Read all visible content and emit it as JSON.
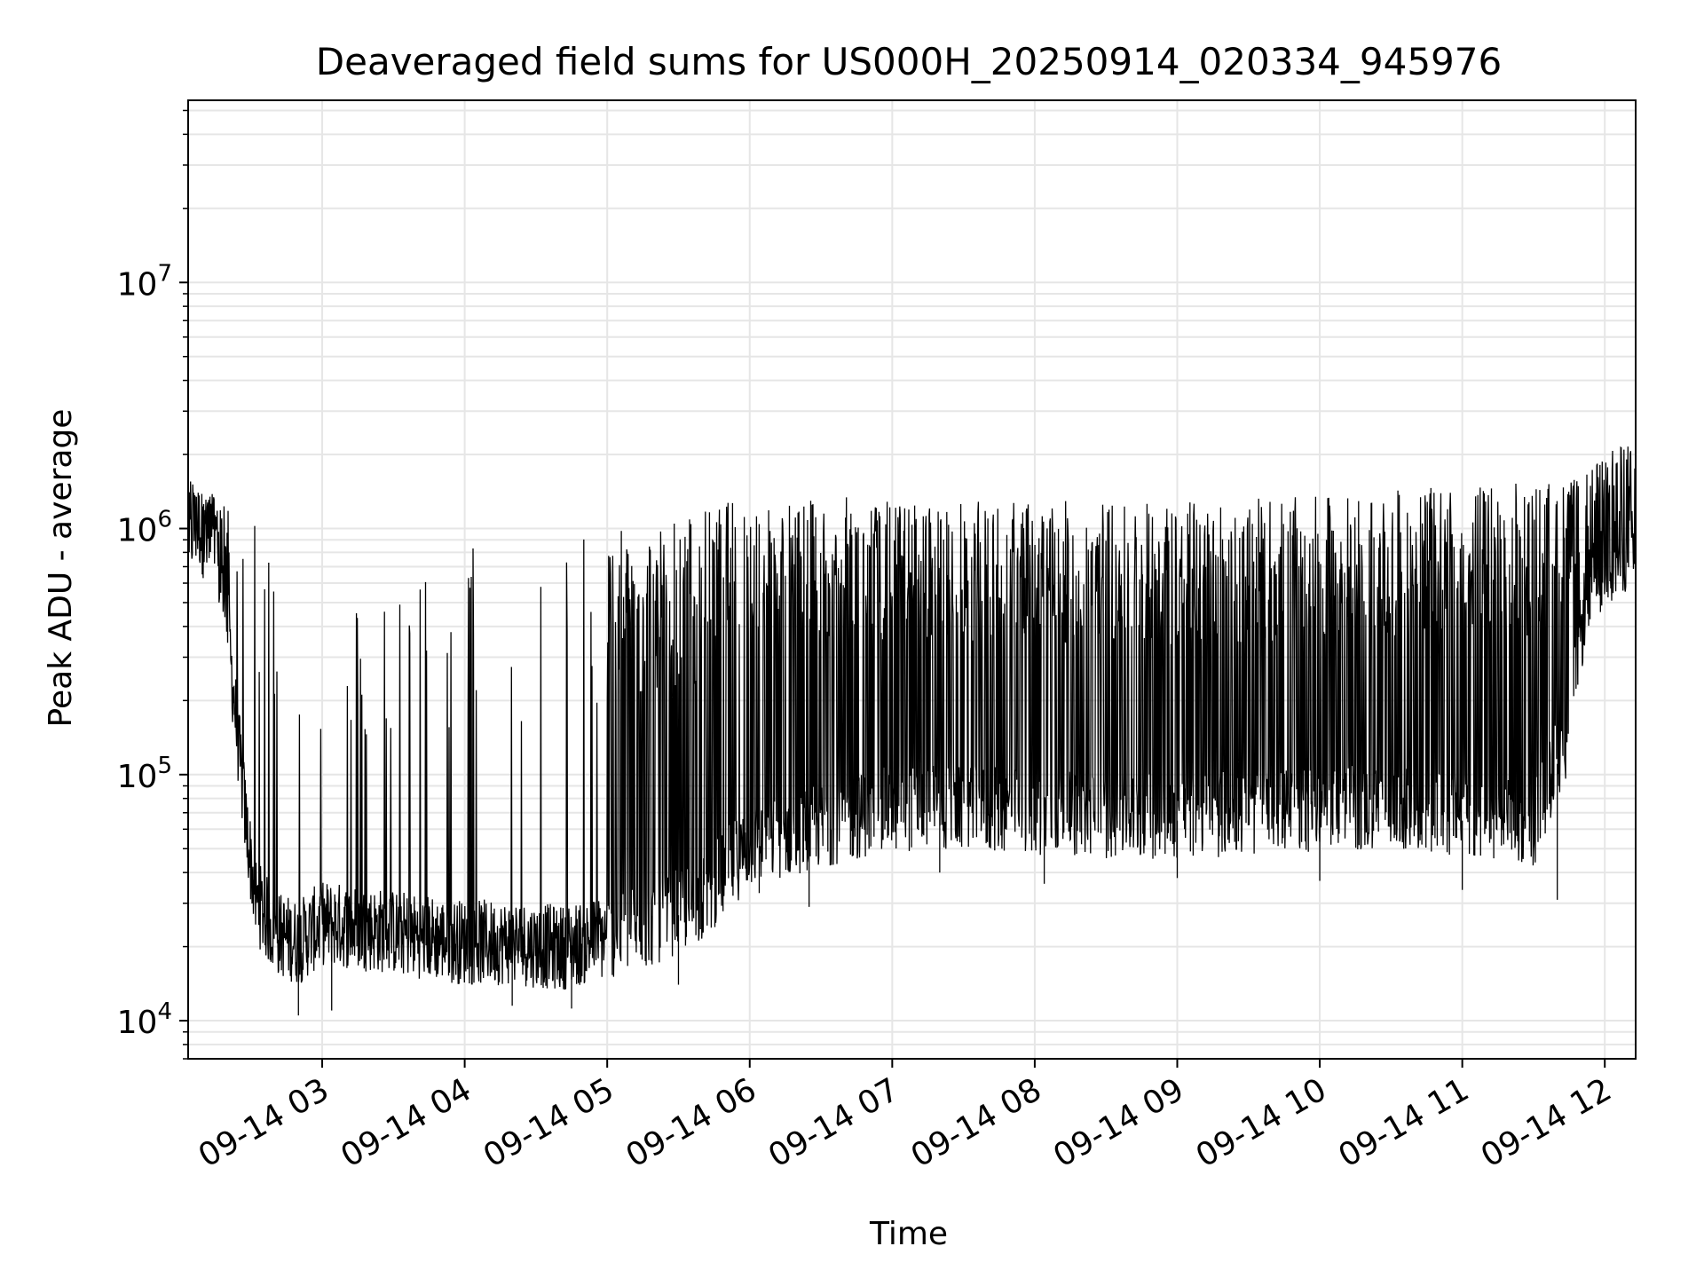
{
  "chart_data": {
    "type": "line",
    "title": "Deaveraged field sums for US000H_20250914_020334_945976",
    "xlabel": "Time",
    "ylabel": "Peak ADU - average",
    "x_range": [
      "2025-09-14T02:03:34",
      "2025-09-14T12:13:00"
    ],
    "ylim": [
      7000,
      55000000
    ],
    "y_scale": "log",
    "grid": true,
    "line_color": "#000000",
    "x_ticks": [
      {
        "value": "2025-09-14T03:00",
        "label": "09-14 03"
      },
      {
        "value": "2025-09-14T04:00",
        "label": "09-14 04"
      },
      {
        "value": "2025-09-14T05:00",
        "label": "09-14 05"
      },
      {
        "value": "2025-09-14T06:00",
        "label": "09-14 06"
      },
      {
        "value": "2025-09-14T07:00",
        "label": "09-14 07"
      },
      {
        "value": "2025-09-14T08:00",
        "label": "09-14 08"
      },
      {
        "value": "2025-09-14T09:00",
        "label": "09-14 09"
      },
      {
        "value": "2025-09-14T10:00",
        "label": "09-14 10"
      },
      {
        "value": "2025-09-14T11:00",
        "label": "09-14 11"
      },
      {
        "value": "2025-09-14T12:00",
        "label": "09-14 12"
      }
    ],
    "y_ticks": [
      {
        "value": 10000,
        "base": "10",
        "exp": "4"
      },
      {
        "value": 100000,
        "base": "10",
        "exp": "5"
      },
      {
        "value": 1000000,
        "base": "10",
        "exp": "6"
      },
      {
        "value": 10000000,
        "base": "10",
        "exp": "7"
      }
    ],
    "series": [
      {
        "points": [
          {
            "t": "2025-09-14T02:04",
            "y": 900000
          },
          {
            "t": "2025-09-14T02:08",
            "y": 1000000
          },
          {
            "t": "2025-09-14T02:12",
            "y": 800000
          },
          {
            "t": "2025-09-14T02:16",
            "y": 700000
          },
          {
            "t": "2025-09-14T02:20",
            "y": 400000
          },
          {
            "t": "2025-09-14T02:24",
            "y": 150000
          },
          {
            "t": "2025-09-14T02:28",
            "y": 60000
          },
          {
            "t": "2025-09-14T02:32",
            "y": 30000
          },
          {
            "t": "2025-09-14T02:40",
            "y": 22000
          },
          {
            "t": "2025-09-14T02:50",
            "y": 20000
          },
          {
            "t": "2025-09-14T03:00",
            "y": 24000
          },
          {
            "t": "2025-09-14T03:15",
            "y": 23000
          },
          {
            "t": "2025-09-14T03:30",
            "y": 22000
          },
          {
            "t": "2025-09-14T03:45",
            "y": 21000
          },
          {
            "t": "2025-09-14T04:00",
            "y": 20000
          },
          {
            "t": "2025-09-14T04:20",
            "y": 20000
          },
          {
            "t": "2025-09-14T04:40",
            "y": 19000
          },
          {
            "t": "2025-09-14T05:00",
            "y": 21000
          },
          {
            "t": "2025-09-14T05:20",
            "y": 24000
          },
          {
            "t": "2025-09-14T05:40",
            "y": 30000
          },
          {
            "t": "2025-09-14T06:00",
            "y": 50000
          },
          {
            "t": "2025-09-14T06:30",
            "y": 60000
          },
          {
            "t": "2025-09-14T07:00",
            "y": 70000
          },
          {
            "t": "2025-09-14T07:30",
            "y": 70000
          },
          {
            "t": "2025-09-14T08:00",
            "y": 68000
          },
          {
            "t": "2025-09-14T08:30",
            "y": 65000
          },
          {
            "t": "2025-09-14T09:00",
            "y": 65000
          },
          {
            "t": "2025-09-14T09:30",
            "y": 67000
          },
          {
            "t": "2025-09-14T10:00",
            "y": 70000
          },
          {
            "t": "2025-09-14T10:30",
            "y": 70000
          },
          {
            "t": "2025-09-14T11:00",
            "y": 65000
          },
          {
            "t": "2025-09-14T11:30",
            "y": 60000
          },
          {
            "t": "2025-09-14T11:45",
            "y": 150000
          },
          {
            "t": "2025-09-14T11:52",
            "y": 500000
          },
          {
            "t": "2025-09-14T12:00",
            "y": 700000
          },
          {
            "t": "2025-09-14T12:10",
            "y": 800000
          },
          {
            "t": "2025-09-14T12:13",
            "y": 750000
          }
        ],
        "peaks": [
          {
            "t": "2025-09-14T02:05",
            "y": 1600000
          },
          {
            "t": "2025-09-14T02:14",
            "y": 1400000
          },
          {
            "t": "2025-09-14T02:47",
            "y": 800000
          },
          {
            "t": "2025-09-14T02:52",
            "y": 300000
          },
          {
            "t": "2025-09-14T03:20",
            "y": 580000
          },
          {
            "t": "2025-09-14T03:38",
            "y": 780000
          },
          {
            "t": "2025-09-14T03:50",
            "y": 580000
          },
          {
            "t": "2025-09-14T04:00",
            "y": 920000
          },
          {
            "t": "2025-09-14T04:17",
            "y": 880000
          },
          {
            "t": "2025-09-14T04:40",
            "y": 900000
          },
          {
            "t": "2025-09-14T05:00",
            "y": 950000
          },
          {
            "t": "2025-09-14T05:40",
            "y": 1200000
          },
          {
            "t": "2025-09-14T06:00",
            "y": 1400000
          },
          {
            "t": "2025-09-14T06:20",
            "y": 1300000
          },
          {
            "t": "2025-09-14T06:40",
            "y": 1350000
          },
          {
            "t": "2025-09-14T07:00",
            "y": 1300000
          },
          {
            "t": "2025-09-14T08:00",
            "y": 1300000
          },
          {
            "t": "2025-09-14T09:00",
            "y": 1300000
          },
          {
            "t": "2025-09-14T10:00",
            "y": 1350000
          },
          {
            "t": "2025-09-14T11:00",
            "y": 1500000
          },
          {
            "t": "2025-09-14T11:50",
            "y": 1600000
          },
          {
            "t": "2025-09-14T12:05",
            "y": 2200000
          }
        ],
        "troughs": [
          {
            "t": "2025-09-14T02:50",
            "y": 10500
          },
          {
            "t": "2025-09-14T03:04",
            "y": 11000
          },
          {
            "t": "2025-09-14T04:20",
            "y": 11500
          },
          {
            "t": "2025-09-14T04:45",
            "y": 11200
          },
          {
            "t": "2025-09-14T05:30",
            "y": 14000
          },
          {
            "t": "2025-09-14T06:04",
            "y": 33000
          },
          {
            "t": "2025-09-14T06:25",
            "y": 29000
          },
          {
            "t": "2025-09-14T07:20",
            "y": 40000
          },
          {
            "t": "2025-09-14T08:04",
            "y": 36000
          },
          {
            "t": "2025-09-14T09:00",
            "y": 38000
          },
          {
            "t": "2025-09-14T10:00",
            "y": 37000
          },
          {
            "t": "2025-09-14T11:00",
            "y": 34000
          },
          {
            "t": "2025-09-14T11:40",
            "y": 31000
          }
        ]
      }
    ]
  }
}
